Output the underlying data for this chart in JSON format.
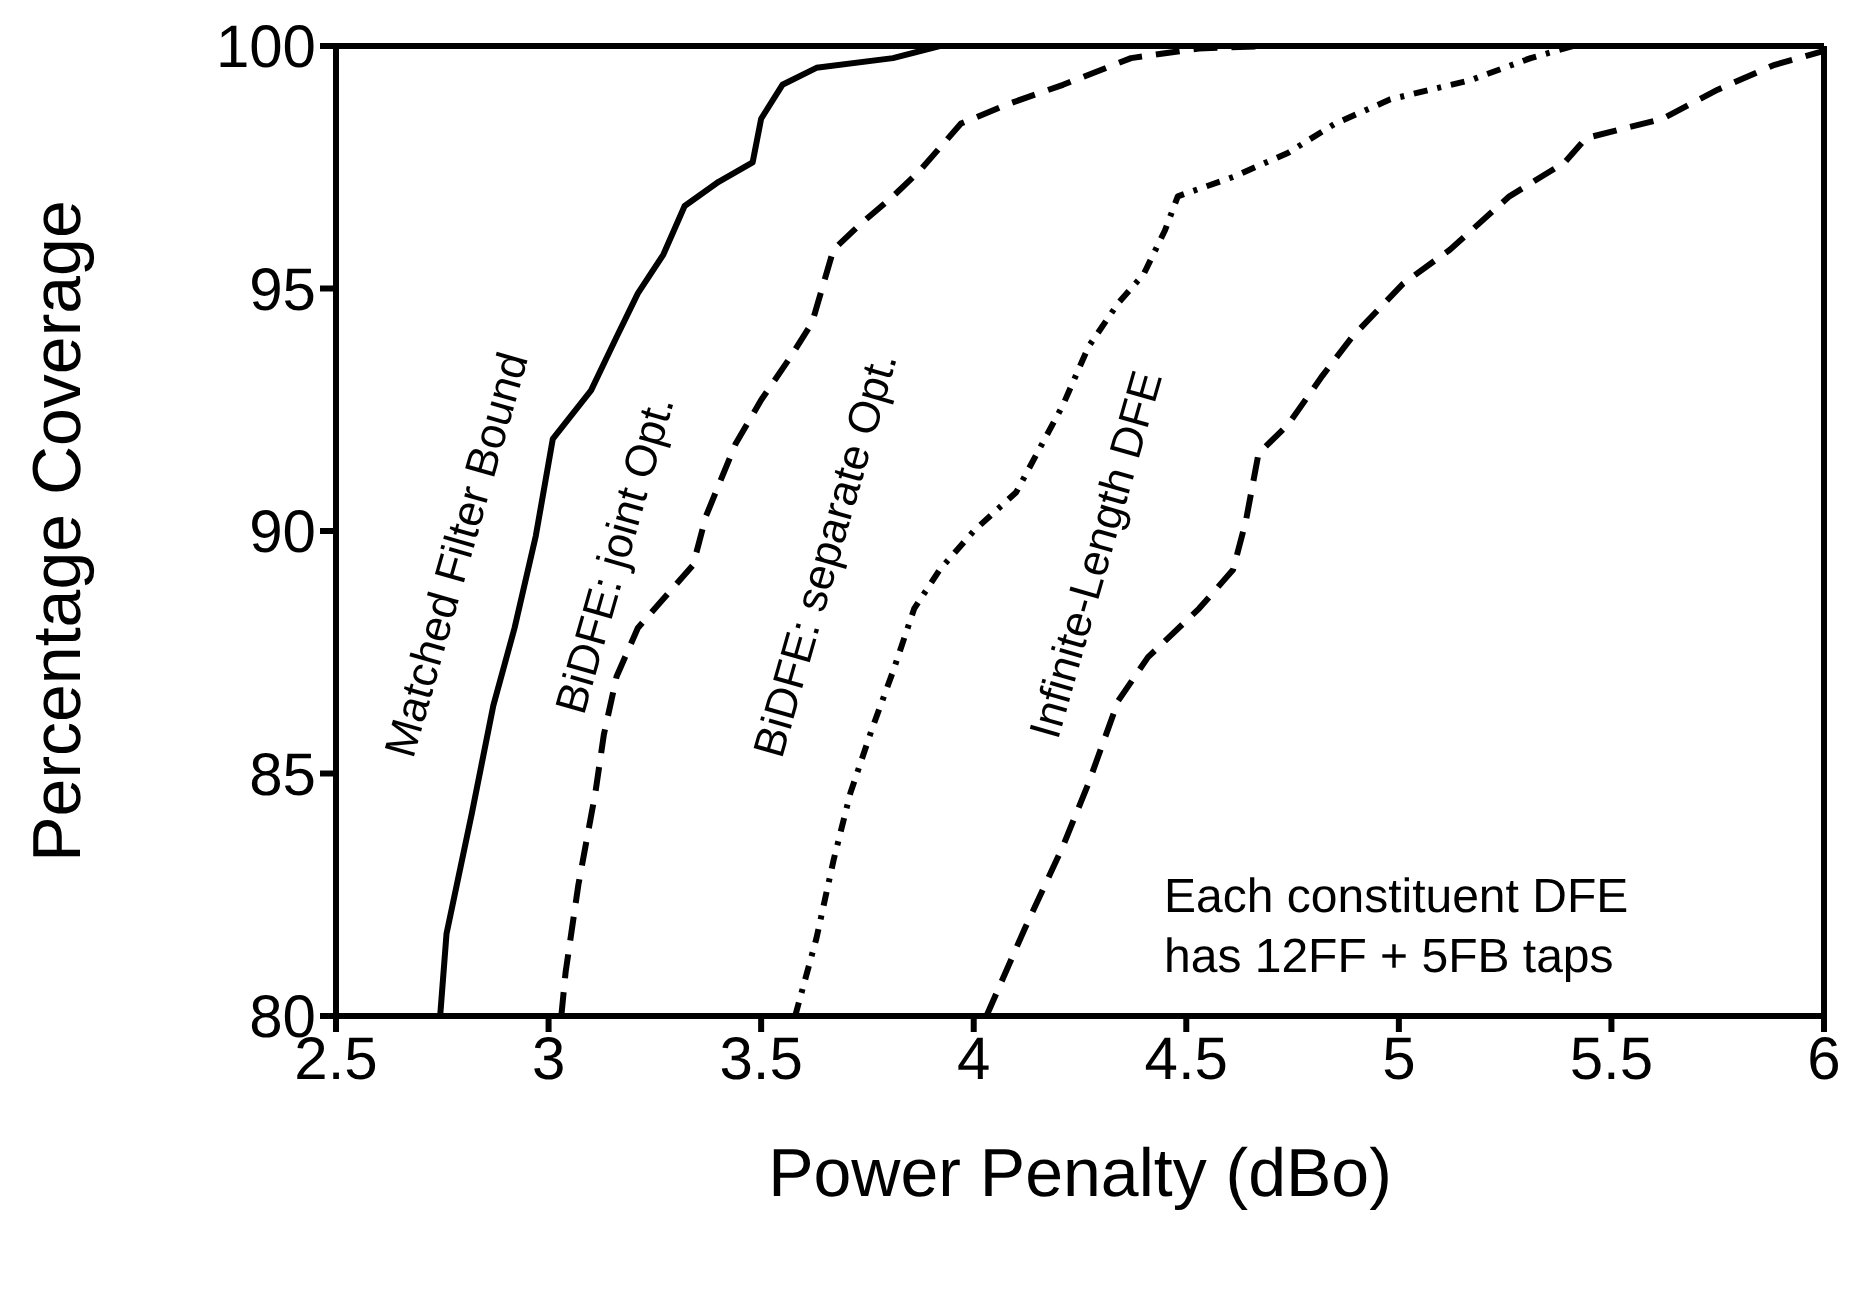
{
  "chart_data": {
    "type": "line",
    "xlabel": "Power Penalty (dBo)",
    "ylabel": "Percentage Coverage",
    "xlim": [
      2.5,
      6
    ],
    "ylim": [
      80,
      100
    ],
    "xticks": [
      2.5,
      3,
      3.5,
      4,
      4.5,
      5,
      5.5,
      6
    ],
    "yticks": [
      80,
      85,
      90,
      95,
      100
    ],
    "marker": "none",
    "annotations": [
      "Each constituent DFE\nhas 12FF + 5FB taps"
    ],
    "series": [
      {
        "name": "Matched Filter Bound",
        "color": "#000000",
        "line_style": "solid",
        "x": [
          2.745,
          2.76,
          2.82,
          2.87,
          2.92,
          2.97,
          3.01,
          3.1,
          3.16,
          3.21,
          3.27,
          3.32,
          3.4,
          3.48,
          3.5,
          3.55,
          3.63,
          3.81,
          3.92
        ],
        "values": [
          80,
          81.7,
          84.2,
          86.4,
          88,
          89.9,
          91.9,
          92.9,
          94,
          94.9,
          95.7,
          96.7,
          97.2,
          97.6,
          98.5,
          99.2,
          99.55,
          99.75,
          100
        ]
      },
      {
        "name": "BiDFE: joint Opt.",
        "color": "#000000",
        "line_style": "dashed",
        "x": [
          3.03,
          3.04,
          3.07,
          3.11,
          3.13,
          3.16,
          3.21,
          3.28,
          3.34,
          3.37,
          3.44,
          3.5,
          3.57,
          3.62,
          3.67,
          3.73,
          3.81,
          3.87,
          3.97,
          4.08,
          4.21,
          4.37,
          4.53,
          4.69
        ],
        "values": [
          80,
          80.9,
          82.7,
          84.6,
          85.8,
          87,
          88,
          88.7,
          89.3,
          90.3,
          91.8,
          92.7,
          93.6,
          94.3,
          95.8,
          96.3,
          96.9,
          97.4,
          98.4,
          98.8,
          99.2,
          99.75,
          99.95,
          100
        ]
      },
      {
        "name": "BiDFE: separate Opt.",
        "color": "#000000",
        "line_style": "dotted",
        "x": [
          3.58,
          3.63,
          3.67,
          3.71,
          3.76,
          3.81,
          3.86,
          3.92,
          4,
          4.1,
          4.21,
          4.27,
          4.34,
          4.4,
          4.45,
          4.48,
          4.61,
          4.74,
          4.85,
          4.98,
          5.17,
          5.31,
          5.41
        ],
        "values": [
          80,
          81.6,
          83.2,
          84.6,
          85.9,
          87.1,
          88.4,
          89.2,
          90,
          90.8,
          92.6,
          93.8,
          94.7,
          95.3,
          96.2,
          96.9,
          97.3,
          97.8,
          98.4,
          98.9,
          99.3,
          99.75,
          100
        ]
      },
      {
        "name": "Infinite-Length DFE",
        "color": "#000000",
        "line_style": "dashed",
        "x": [
          4.03,
          4.08,
          4.12,
          4.21,
          4.27,
          4.34,
          4.41,
          4.53,
          4.61,
          4.64,
          4.67,
          4.74,
          4.82,
          4.89,
          5.01,
          5.12,
          5.26,
          5.39,
          5.44,
          5.62,
          5.75,
          5.88,
          6
        ],
        "values": [
          80,
          81,
          81.8,
          83.5,
          84.8,
          86.5,
          87.4,
          88.4,
          89.2,
          90.2,
          91.6,
          92.2,
          93.2,
          94,
          95.1,
          95.8,
          96.9,
          97.6,
          98.1,
          98.5,
          99.1,
          99.6,
          99.9
        ]
      }
    ]
  }
}
